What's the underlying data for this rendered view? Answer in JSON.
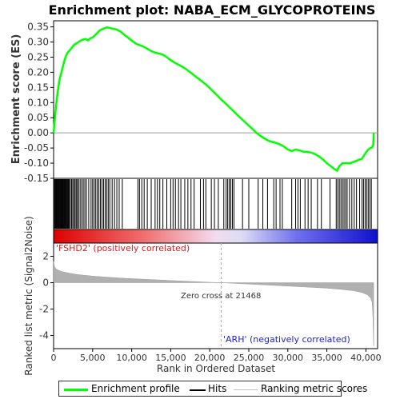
{
  "chart_data": [
    {
      "type": "line",
      "title": "Enrichment plot: NABA_ECM_GLYCOPROTEINS",
      "xlabel": "",
      "ylabel": "Enrichment score (ES)",
      "xlim": [
        0,
        41500
      ],
      "ylim": [
        -0.15,
        0.37
      ],
      "yticks": [
        "0.35",
        "0.30",
        "0.25",
        "0.20",
        "0.15",
        "0.10",
        "0.05",
        "0.00",
        "-0.05",
        "-0.10",
        "-0.15"
      ],
      "ytick_values": [
        0.35,
        0.3,
        0.25,
        0.2,
        0.15,
        0.1,
        0.05,
        0.0,
        -0.05,
        -0.1,
        -0.15
      ],
      "grid": false,
      "series": [
        {
          "name": "Enrichment profile",
          "color": "#00ff00",
          "x": [
            0,
            200,
            400,
            600,
            800,
            1000,
            1200,
            1400,
            1600,
            1800,
            2000,
            2300,
            2600,
            2900,
            3200,
            3500,
            3800,
            4100,
            4400,
            4700,
            5000,
            5300,
            5600,
            5900,
            6200,
            6500,
            6800,
            7100,
            7400,
            7700,
            8000,
            8300,
            8600,
            9000,
            9500,
            10000,
            10500,
            11000,
            11500,
            12000,
            12500,
            13000,
            13500,
            14000,
            14500,
            15000,
            15500,
            16000,
            16500,
            17000,
            17500,
            18000,
            18500,
            19000,
            19500,
            20000,
            20500,
            21000,
            21468,
            22000,
            22500,
            23000,
            23500,
            24000,
            24500,
            25000,
            25500,
            26000,
            26500,
            27000,
            27500,
            28000,
            28500,
            29000,
            29500,
            30000,
            30500,
            31000,
            31500,
            32000,
            32500,
            33000,
            33500,
            34000,
            34500,
            35000,
            35500,
            36000,
            36300,
            36600,
            37000,
            37500,
            38000,
            38500,
            39000,
            39500,
            40000,
            40300,
            40600,
            40800,
            40950,
            41000
          ],
          "y": [
            0.0,
            0.06,
            0.11,
            0.15,
            0.18,
            0.2,
            0.22,
            0.24,
            0.255,
            0.265,
            0.27,
            0.28,
            0.29,
            0.295,
            0.3,
            0.305,
            0.308,
            0.31,
            0.305,
            0.312,
            0.315,
            0.322,
            0.33,
            0.338,
            0.342,
            0.345,
            0.348,
            0.347,
            0.345,
            0.343,
            0.342,
            0.338,
            0.334,
            0.325,
            0.315,
            0.305,
            0.295,
            0.29,
            0.285,
            0.278,
            0.27,
            0.265,
            0.262,
            0.258,
            0.25,
            0.24,
            0.232,
            0.225,
            0.218,
            0.21,
            0.2,
            0.19,
            0.18,
            0.17,
            0.16,
            0.148,
            0.135,
            0.123,
            0.11,
            0.098,
            0.085,
            0.073,
            0.06,
            0.048,
            0.036,
            0.024,
            0.012,
            0.0,
            -0.01,
            -0.018,
            -0.026,
            -0.03,
            -0.033,
            -0.038,
            -0.045,
            -0.055,
            -0.06,
            -0.055,
            -0.058,
            -0.062,
            -0.063,
            -0.065,
            -0.07,
            -0.078,
            -0.088,
            -0.1,
            -0.11,
            -0.12,
            -0.125,
            -0.11,
            -0.1,
            -0.1,
            -0.1,
            -0.095,
            -0.09,
            -0.085,
            -0.065,
            -0.055,
            -0.05,
            -0.048,
            -0.04,
            0.0
          ]
        }
      ]
    },
    {
      "type": "hits",
      "name": "Hits",
      "xlim": [
        0,
        41500
      ],
      "hit_positions": [
        80,
        180,
        260,
        350,
        430,
        520,
        600,
        680,
        760,
        850,
        930,
        1020,
        1100,
        1180,
        1270,
        1350,
        1440,
        1520,
        1610,
        1700,
        1800,
        1900,
        2000,
        2150,
        2300,
        2450,
        2600,
        2750,
        2900,
        3050,
        3200,
        3400,
        3600,
        3800,
        4000,
        4200,
        4500,
        4800,
        5000,
        5200,
        5400,
        5600,
        5800,
        6000,
        6200,
        6400,
        6600,
        6800,
        7000,
        7200,
        7500,
        7800,
        8100,
        8400,
        8800,
        10800,
        11000,
        11300,
        11600,
        12000,
        12500,
        13000,
        13300,
        13600,
        14000,
        14500,
        15000,
        15300,
        15600,
        16000,
        16300,
        16800,
        17200,
        17600,
        18000,
        18800,
        19200,
        19500,
        20200,
        20600,
        21100,
        21800,
        22100,
        22300,
        22500,
        22700,
        22900,
        23100,
        24200,
        25000,
        26200,
        26800,
        27400,
        28200,
        28500,
        29000,
        29300,
        30500,
        31000,
        31300,
        31600,
        32200,
        32600,
        33000,
        33800,
        34300,
        35400,
        36200,
        36400,
        36600,
        36800,
        37000,
        37200,
        37400,
        37600,
        37900,
        38200,
        38500,
        38800,
        39200,
        39500,
        39700,
        39900,
        40100,
        40300,
        40500,
        40700
      ]
    },
    {
      "type": "area",
      "xlabel": "Rank in Ordered Dataset",
      "ylabel": "Ranked list metric (Signal2Noise)",
      "xlim": [
        0,
        41500
      ],
      "ylim": [
        -5,
        3
      ],
      "xticks": [
        "0",
        "5,000",
        "10,000",
        "15,000",
        "20,000",
        "25,000",
        "30,000",
        "35,000",
        "40,000"
      ],
      "xtick_values": [
        0,
        5000,
        10000,
        15000,
        20000,
        25000,
        30000,
        35000,
        40000
      ],
      "yticks": [
        "2",
        "0",
        "-2",
        "-4"
      ],
      "ytick_values": [
        2,
        0,
        -2,
        -4
      ],
      "x": [
        0,
        100,
        300,
        600,
        1000,
        2000,
        3000,
        5000,
        8000,
        12000,
        16000,
        20000,
        21468,
        24000,
        28000,
        32000,
        35000,
        37000,
        38500,
        39500,
        40200,
        40600,
        40800,
        40900,
        40950,
        41000
      ],
      "values": [
        1.6,
        1.25,
        1.05,
        0.95,
        0.85,
        0.72,
        0.62,
        0.5,
        0.37,
        0.25,
        0.14,
        0.03,
        0.0,
        -0.08,
        -0.2,
        -0.32,
        -0.42,
        -0.52,
        -0.62,
        -0.75,
        -0.92,
        -1.15,
        -1.5,
        -2.5,
        -3.8,
        -4.8
      ],
      "annotations": {
        "zero_cross": "Zero cross at 21468",
        "positive": "'FSHD2' (positively correlated)",
        "negative": "'ARH' (negatively correlated)"
      },
      "zero_cross_x": 21468
    }
  ],
  "legend": {
    "items": [
      {
        "label": "Enrichment profile",
        "color": "#00ff00"
      },
      {
        "label": "Hits",
        "color": "#000000"
      },
      {
        "label": "Ranking metric scores",
        "color": "#c0c0c0"
      }
    ]
  },
  "colors": {
    "profile": "#00ff00",
    "hits": "#000000",
    "metric_fill": "#b0b0b0",
    "positive_text": "#d42020",
    "negative_text": "#2222cc"
  }
}
